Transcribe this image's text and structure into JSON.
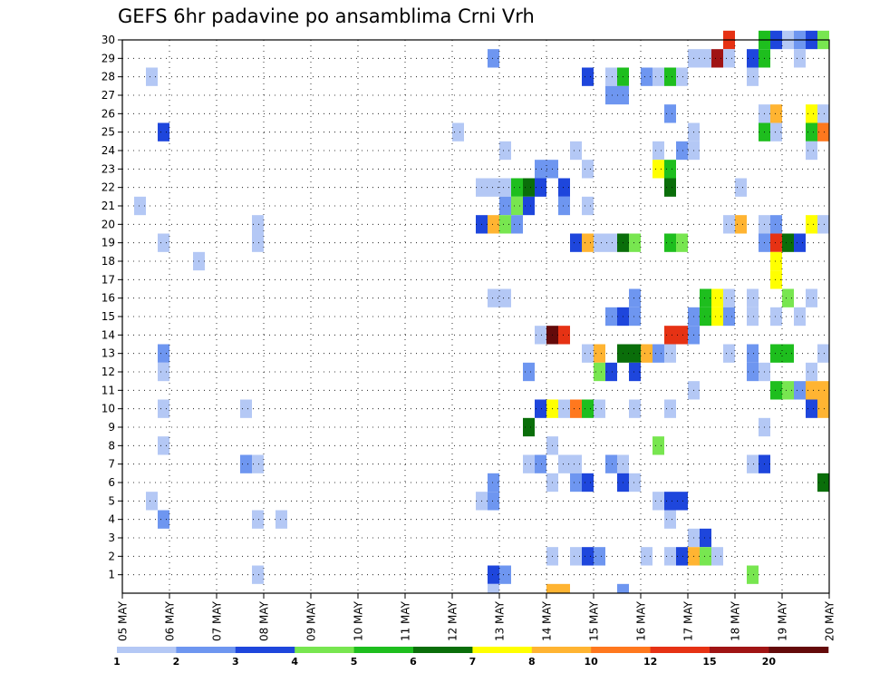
{
  "chart_data": {
    "type": "heatmap",
    "title": "GEFS 6hr padavine po ansamblima Crni Vrh",
    "y_ticks": [
      "1",
      "2",
      "3",
      "4",
      "5",
      "6",
      "7",
      "8",
      "9",
      "10",
      "11",
      "12",
      "13",
      "14",
      "15",
      "16",
      "17",
      "18",
      "19",
      "20",
      "21",
      "22",
      "23",
      "24",
      "25",
      "26",
      "27",
      "28",
      "29",
      "30"
    ],
    "x_ticks": [
      "05 MAY",
      "06 MAY",
      "07 MAY",
      "08 MAY",
      "09 MAY",
      "10 MAY",
      "11 MAY",
      "12 MAY",
      "13 MAY",
      "14 MAY",
      "15 MAY",
      "16 MAY",
      "17 MAY",
      "18 MAY",
      "19 MAY",
      "20 MAY"
    ],
    "x_range_days": [
      5,
      20
    ],
    "y_range": [
      0,
      30
    ],
    "grid": true,
    "legend_position": "bottom",
    "colorbar": {
      "colors": [
        "#b4c8f5",
        "#6e96f0",
        "#1e46dc",
        "#78e650",
        "#1ebe1e",
        "#0a6e0a",
        "#ffff00",
        "#ffb432",
        "#ff781e",
        "#e63214",
        "#a01414",
        "#640a0a"
      ],
      "labels": [
        "1",
        "2",
        "3",
        "4",
        "5",
        "6",
        "7",
        "8",
        "10",
        "12",
        "15",
        "20"
      ]
    },
    "cell_step_days": 0.25,
    "cells": [
      {
        "member": 30,
        "day": 17.75,
        "level": 10
      },
      {
        "member": 30,
        "day": 18.5,
        "level": 5
      },
      {
        "member": 30,
        "day": 18.75,
        "level": 3
      },
      {
        "member": 30,
        "day": 19,
        "level": 1
      },
      {
        "member": 30,
        "day": 19.25,
        "level": 2
      },
      {
        "member": 30,
        "day": 19.5,
        "level": 3
      },
      {
        "member": 30,
        "day": 19.75,
        "level": 4
      },
      {
        "member": 29,
        "day": 12.75,
        "level": 2
      },
      {
        "member": 29,
        "day": 17,
        "level": 1
      },
      {
        "member": 29,
        "day": 17.25,
        "level": 1
      },
      {
        "member": 29,
        "day": 17.5,
        "level": 11
      },
      {
        "member": 29,
        "day": 17.75,
        "level": 1
      },
      {
        "member": 29,
        "day": 18.25,
        "level": 3
      },
      {
        "member": 29,
        "day": 18.5,
        "level": 5
      },
      {
        "member": 29,
        "day": 19.25,
        "level": 1
      },
      {
        "member": 28,
        "day": 5.5,
        "level": 1
      },
      {
        "member": 28,
        "day": 14.75,
        "level": 3
      },
      {
        "member": 28,
        "day": 15.25,
        "level": 1
      },
      {
        "member": 28,
        "day": 15.5,
        "level": 5
      },
      {
        "member": 28,
        "day": 16,
        "level": 2
      },
      {
        "member": 28,
        "day": 16.25,
        "level": 1
      },
      {
        "member": 28,
        "day": 16.5,
        "level": 5
      },
      {
        "member": 28,
        "day": 16.75,
        "level": 1
      },
      {
        "member": 28,
        "day": 18.25,
        "level": 1
      },
      {
        "member": 27,
        "day": 15.25,
        "level": 2
      },
      {
        "member": 27,
        "day": 15.5,
        "level": 2
      },
      {
        "member": 26,
        "day": 16.5,
        "level": 2
      },
      {
        "member": 26,
        "day": 18.5,
        "level": 1
      },
      {
        "member": 26,
        "day": 18.75,
        "level": 8
      },
      {
        "member": 26,
        "day": 19.5,
        "level": 7
      },
      {
        "member": 26,
        "day": 19.75,
        "level": 1
      },
      {
        "member": 25,
        "day": 5.75,
        "level": 3
      },
      {
        "member": 25,
        "day": 12,
        "level": 1
      },
      {
        "member": 25,
        "day": 17,
        "level": 1
      },
      {
        "member": 25,
        "day": 18.5,
        "level": 5
      },
      {
        "member": 25,
        "day": 18.75,
        "level": 1
      },
      {
        "member": 25,
        "day": 19.5,
        "level": 5
      },
      {
        "member": 25,
        "day": 19.75,
        "level": 9
      },
      {
        "member": 24,
        "day": 13,
        "level": 1
      },
      {
        "member": 24,
        "day": 14.5,
        "level": 1
      },
      {
        "member": 24,
        "day": 16.25,
        "level": 1
      },
      {
        "member": 24,
        "day": 16.75,
        "level": 2
      },
      {
        "member": 24,
        "day": 17,
        "level": 1
      },
      {
        "member": 24,
        "day": 19.5,
        "level": 1
      },
      {
        "member": 23,
        "day": 13.75,
        "level": 2
      },
      {
        "member": 23,
        "day": 14,
        "level": 2
      },
      {
        "member": 23,
        "day": 14.75,
        "level": 1
      },
      {
        "member": 23,
        "day": 16.25,
        "level": 7
      },
      {
        "member": 23,
        "day": 16.5,
        "level": 5
      },
      {
        "member": 22,
        "day": 12.5,
        "level": 1
      },
      {
        "member": 22,
        "day": 12.75,
        "level": 1
      },
      {
        "member": 22,
        "day": 13,
        "level": 1
      },
      {
        "member": 22,
        "day": 13.25,
        "level": 5
      },
      {
        "member": 22,
        "day": 13.5,
        "level": 6
      },
      {
        "member": 22,
        "day": 13.75,
        "level": 3
      },
      {
        "member": 22,
        "day": 14.25,
        "level": 3
      },
      {
        "member": 22,
        "day": 16.5,
        "level": 6
      },
      {
        "member": 22,
        "day": 18,
        "level": 1
      },
      {
        "member": 21,
        "day": 5.25,
        "level": 1
      },
      {
        "member": 21,
        "day": 13,
        "level": 2
      },
      {
        "member": 21,
        "day": 13.25,
        "level": 4
      },
      {
        "member": 21,
        "day": 13.5,
        "level": 3
      },
      {
        "member": 21,
        "day": 14.25,
        "level": 2
      },
      {
        "member": 21,
        "day": 14.75,
        "level": 1
      },
      {
        "member": 20,
        "day": 7.75,
        "level": 1
      },
      {
        "member": 20,
        "day": 12.5,
        "level": 3
      },
      {
        "member": 20,
        "day": 12.75,
        "level": 8
      },
      {
        "member": 20,
        "day": 13,
        "level": 4
      },
      {
        "member": 20,
        "day": 13.25,
        "level": 2
      },
      {
        "member": 20,
        "day": 17.75,
        "level": 1
      },
      {
        "member": 20,
        "day": 18,
        "level": 8
      },
      {
        "member": 20,
        "day": 18.5,
        "level": 1
      },
      {
        "member": 20,
        "day": 18.75,
        "level": 2
      },
      {
        "member": 20,
        "day": 19.5,
        "level": 7
      },
      {
        "member": 20,
        "day": 19.75,
        "level": 1
      },
      {
        "member": 19,
        "day": 5.75,
        "level": 1
      },
      {
        "member": 19,
        "day": 7.75,
        "level": 1
      },
      {
        "member": 19,
        "day": 14.5,
        "level": 3
      },
      {
        "member": 19,
        "day": 14.75,
        "level": 8
      },
      {
        "member": 19,
        "day": 15,
        "level": 1
      },
      {
        "member": 19,
        "day": 15.25,
        "level": 1
      },
      {
        "member": 19,
        "day": 15.5,
        "level": 6
      },
      {
        "member": 19,
        "day": 15.75,
        "level": 4
      },
      {
        "member": 19,
        "day": 16.5,
        "level": 5
      },
      {
        "member": 19,
        "day": 16.75,
        "level": 4
      },
      {
        "member": 19,
        "day": 18.5,
        "level": 2
      },
      {
        "member": 19,
        "day": 18.75,
        "level": 10
      },
      {
        "member": 19,
        "day": 19,
        "level": 6
      },
      {
        "member": 19,
        "day": 19.25,
        "level": 3
      },
      {
        "member": 18,
        "day": 6.5,
        "level": 1
      },
      {
        "member": 18,
        "day": 18.75,
        "level": 7
      },
      {
        "member": 17,
        "day": 18.75,
        "level": 7
      },
      {
        "member": 16,
        "day": 12.75,
        "level": 1
      },
      {
        "member": 16,
        "day": 13,
        "level": 1
      },
      {
        "member": 16,
        "day": 15.75,
        "level": 2
      },
      {
        "member": 16,
        "day": 17.25,
        "level": 5
      },
      {
        "member": 16,
        "day": 17.5,
        "level": 7
      },
      {
        "member": 16,
        "day": 17.75,
        "level": 1
      },
      {
        "member": 16,
        "day": 18.25,
        "level": 1
      },
      {
        "member": 16,
        "day": 19,
        "level": 4
      },
      {
        "member": 16,
        "day": 19.5,
        "level": 1
      },
      {
        "member": 15,
        "day": 15.25,
        "level": 2
      },
      {
        "member": 15,
        "day": 15.5,
        "level": 3
      },
      {
        "member": 15,
        "day": 15.75,
        "level": 2
      },
      {
        "member": 15,
        "day": 17,
        "level": 2
      },
      {
        "member": 15,
        "day": 17.25,
        "level": 5
      },
      {
        "member": 15,
        "day": 17.5,
        "level": 7
      },
      {
        "member": 15,
        "day": 17.75,
        "level": 2
      },
      {
        "member": 15,
        "day": 18.25,
        "level": 1
      },
      {
        "member": 15,
        "day": 18.75,
        "level": 1
      },
      {
        "member": 15,
        "day": 19.25,
        "level": 1
      },
      {
        "member": 14,
        "day": 13.75,
        "level": 1
      },
      {
        "member": 14,
        "day": 14,
        "level": 12
      },
      {
        "member": 14,
        "day": 14.25,
        "level": 10
      },
      {
        "member": 14,
        "day": 16.5,
        "level": 10
      },
      {
        "member": 14,
        "day": 16.75,
        "level": 10
      },
      {
        "member": 14,
        "day": 17,
        "level": 2
      },
      {
        "member": 13,
        "day": 5.75,
        "level": 2
      },
      {
        "member": 13,
        "day": 14.75,
        "level": 1
      },
      {
        "member": 13,
        "day": 15,
        "level": 8
      },
      {
        "member": 13,
        "day": 15.5,
        "level": 6
      },
      {
        "member": 13,
        "day": 15.75,
        "level": 6
      },
      {
        "member": 13,
        "day": 16,
        "level": 8
      },
      {
        "member": 13,
        "day": 16.25,
        "level": 2
      },
      {
        "member": 13,
        "day": 16.5,
        "level": 1
      },
      {
        "member": 13,
        "day": 17.75,
        "level": 1
      },
      {
        "member": 13,
        "day": 18.25,
        "level": 2
      },
      {
        "member": 13,
        "day": 18.75,
        "level": 5
      },
      {
        "member": 13,
        "day": 19,
        "level": 5
      },
      {
        "member": 13,
        "day": 19.75,
        "level": 1
      },
      {
        "member": 12,
        "day": 5.75,
        "level": 1
      },
      {
        "member": 12,
        "day": 13.5,
        "level": 2
      },
      {
        "member": 12,
        "day": 15,
        "level": 4
      },
      {
        "member": 12,
        "day": 15.25,
        "level": 3
      },
      {
        "member": 12,
        "day": 15.75,
        "level": 3
      },
      {
        "member": 12,
        "day": 18.25,
        "level": 2
      },
      {
        "member": 12,
        "day": 18.5,
        "level": 1
      },
      {
        "member": 12,
        "day": 19.5,
        "level": 1
      },
      {
        "member": 11,
        "day": 17,
        "level": 1
      },
      {
        "member": 11,
        "day": 18.75,
        "level": 5
      },
      {
        "member": 11,
        "day": 19,
        "level": 4
      },
      {
        "member": 11,
        "day": 19.25,
        "level": 2
      },
      {
        "member": 11,
        "day": 19.5,
        "level": 8
      },
      {
        "member": 11,
        "day": 19.75,
        "level": 8
      },
      {
        "member": 10,
        "day": 5.75,
        "level": 1
      },
      {
        "member": 10,
        "day": 7.5,
        "level": 1
      },
      {
        "member": 10,
        "day": 13.75,
        "level": 3
      },
      {
        "member": 10,
        "day": 14,
        "level": 7
      },
      {
        "member": 10,
        "day": 14.25,
        "level": 1
      },
      {
        "member": 10,
        "day": 14.5,
        "level": 9
      },
      {
        "member": 10,
        "day": 14.75,
        "level": 5
      },
      {
        "member": 10,
        "day": 15,
        "level": 1
      },
      {
        "member": 10,
        "day": 15.75,
        "level": 1
      },
      {
        "member": 10,
        "day": 16.5,
        "level": 1
      },
      {
        "member": 10,
        "day": 19.5,
        "level": 3
      },
      {
        "member": 10,
        "day": 19.75,
        "level": 8
      },
      {
        "member": 9,
        "day": 13.5,
        "level": 6
      },
      {
        "member": 9,
        "day": 18.5,
        "level": 1
      },
      {
        "member": 8,
        "day": 5.75,
        "level": 1
      },
      {
        "member": 8,
        "day": 14,
        "level": 1
      },
      {
        "member": 8,
        "day": 16.25,
        "level": 4
      },
      {
        "member": 7,
        "day": 7.5,
        "level": 2
      },
      {
        "member": 7,
        "day": 7.75,
        "level": 1
      },
      {
        "member": 7,
        "day": 13.5,
        "level": 1
      },
      {
        "member": 7,
        "day": 13.75,
        "level": 2
      },
      {
        "member": 7,
        "day": 14.25,
        "level": 1
      },
      {
        "member": 7,
        "day": 14.5,
        "level": 1
      },
      {
        "member": 7,
        "day": 15.25,
        "level": 2
      },
      {
        "member": 7,
        "day": 15.5,
        "level": 1
      },
      {
        "member": 7,
        "day": 18.25,
        "level": 1
      },
      {
        "member": 7,
        "day": 18.5,
        "level": 3
      },
      {
        "member": 6,
        "day": 12.75,
        "level": 2
      },
      {
        "member": 6,
        "day": 14,
        "level": 1
      },
      {
        "member": 6,
        "day": 14.5,
        "level": 2
      },
      {
        "member": 6,
        "day": 14.75,
        "level": 3
      },
      {
        "member": 6,
        "day": 15.5,
        "level": 3
      },
      {
        "member": 6,
        "day": 15.75,
        "level": 1
      },
      {
        "member": 6,
        "day": 19.75,
        "level": 6
      },
      {
        "member": 5,
        "day": 5.5,
        "level": 1
      },
      {
        "member": 5,
        "day": 12.5,
        "level": 1
      },
      {
        "member": 5,
        "day": 12.75,
        "level": 2
      },
      {
        "member": 5,
        "day": 16.25,
        "level": 1
      },
      {
        "member": 5,
        "day": 16.5,
        "level": 3
      },
      {
        "member": 5,
        "day": 16.75,
        "level": 3
      },
      {
        "member": 4,
        "day": 5.75,
        "level": 2
      },
      {
        "member": 4,
        "day": 7.75,
        "level": 1
      },
      {
        "member": 4,
        "day": 8.25,
        "level": 1
      },
      {
        "member": 4,
        "day": 16.5,
        "level": 1
      },
      {
        "member": 3,
        "day": 17,
        "level": 1
      },
      {
        "member": 3,
        "day": 17.25,
        "level": 3
      },
      {
        "member": 2,
        "day": 14,
        "level": 1
      },
      {
        "member": 2,
        "day": 14.5,
        "level": 1
      },
      {
        "member": 2,
        "day": 14.75,
        "level": 3
      },
      {
        "member": 2,
        "day": 15,
        "level": 2
      },
      {
        "member": 2,
        "day": 16,
        "level": 1
      },
      {
        "member": 2,
        "day": 16.5,
        "level": 1
      },
      {
        "member": 2,
        "day": 16.75,
        "level": 3
      },
      {
        "member": 2,
        "day": 17,
        "level": 8
      },
      {
        "member": 2,
        "day": 17.25,
        "level": 4
      },
      {
        "member": 2,
        "day": 17.5,
        "level": 1
      },
      {
        "member": 1,
        "day": 7.75,
        "level": 1
      },
      {
        "member": 1,
        "day": 12.75,
        "level": 3
      },
      {
        "member": 1,
        "day": 13,
        "level": 2
      },
      {
        "member": 1,
        "day": 18.25,
        "level": 4
      },
      {
        "member": 0,
        "day": 12.75,
        "level": 1
      },
      {
        "member": 0,
        "day": 14,
        "level": 8
      },
      {
        "member": 0,
        "day": 14.25,
        "level": 8
      },
      {
        "member": 0,
        "day": 15.5,
        "level": 2
      }
    ]
  }
}
